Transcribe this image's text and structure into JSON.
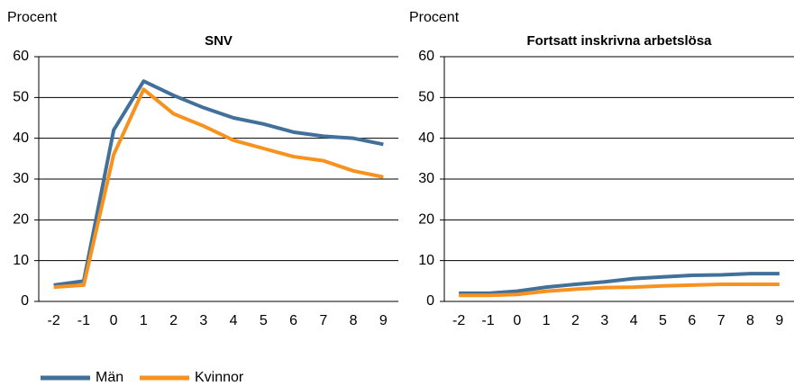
{
  "chart_data": [
    {
      "type": "line",
      "title": "SNV",
      "y_label": "Procent",
      "categories": [
        "-2",
        "-1",
        "0",
        "1",
        "2",
        "3",
        "4",
        "5",
        "6",
        "7",
        "8",
        "9"
      ],
      "series": [
        {
          "name": "Män",
          "color": "#41719b",
          "values": [
            4,
            5,
            42,
            54,
            50.5,
            47.5,
            45,
            43.5,
            41.5,
            40.5,
            40,
            38.5
          ]
        },
        {
          "name": "Kvinnor",
          "color": "#f7921e",
          "values": [
            3.5,
            4,
            36,
            52,
            46,
            43,
            39.5,
            37.5,
            35.5,
            34.5,
            32,
            30.5
          ]
        }
      ],
      "ylim": [
        0,
        60
      ],
      "yticks": [
        0,
        10,
        20,
        30,
        40,
        50,
        60
      ],
      "grid": true
    },
    {
      "type": "line",
      "title": "Fortsatt inskrivna arbetslösa",
      "y_label": "Procent",
      "categories": [
        "-2",
        "-1",
        "0",
        "1",
        "2",
        "3",
        "4",
        "5",
        "6",
        "7",
        "8",
        "9"
      ],
      "series": [
        {
          "color": "#41719b",
          "values": [
            2,
            2,
            2.5,
            3.5,
            4.2,
            4.8,
            5.6,
            6,
            6.4,
            6.5,
            6.8,
            6.8
          ]
        },
        {
          "color": "#f7921e",
          "values": [
            1.5,
            1.5,
            1.7,
            2.5,
            3,
            3.4,
            3.5,
            3.8,
            4,
            4.2,
            4.2,
            4.2
          ]
        }
      ],
      "ylim": [
        0,
        60
      ],
      "yticks": [
        0,
        10,
        20,
        30,
        40,
        50,
        60
      ],
      "grid": true
    }
  ]
}
